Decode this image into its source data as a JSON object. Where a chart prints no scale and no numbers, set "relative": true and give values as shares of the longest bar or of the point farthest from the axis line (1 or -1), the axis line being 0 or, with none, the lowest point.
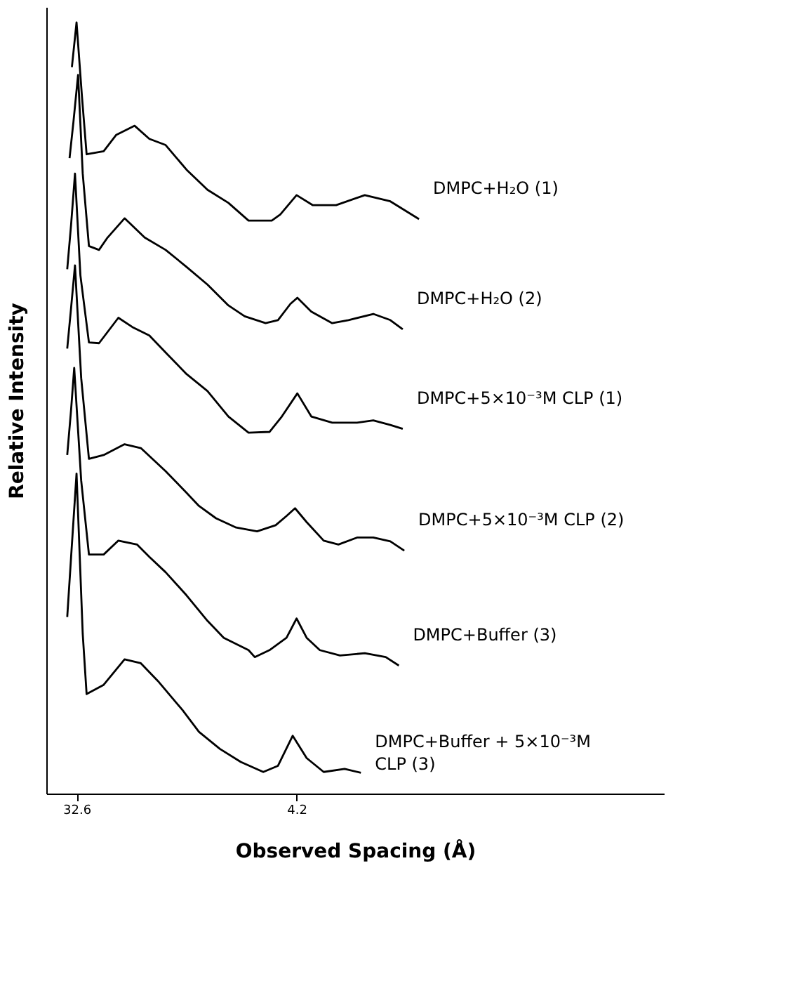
{
  "chart_data": {
    "type": "line",
    "relative": true,
    "xlabel": "Observed Spacing (Å)",
    "ylabel": "Relative Intensity",
    "tick_labels": "x",
    "xlim": [
      36.5,
      -43.2
    ],
    "xticks": [
      32.6,
      4.2
    ],
    "series": [
      {
        "name": "DMPC+H₂O (1)",
        "color": "#000000",
        "x": [
          33.2,
          32.6,
          31.9,
          31.3,
          29.1,
          27.5,
          25.1,
          23.2,
          21.1,
          18.4,
          15.7,
          13.0,
          10.4,
          7.4,
          6.3,
          4.2,
          2.1,
          -0.9,
          -4.6,
          -7.9,
          -11.6
        ],
        "values": [
          0.942,
          1.0,
          0.904,
          0.829,
          0.833,
          0.854,
          0.866,
          0.849,
          0.841,
          0.809,
          0.783,
          0.766,
          0.743,
          0.743,
          0.751,
          0.776,
          0.763,
          0.763,
          0.776,
          0.768,
          0.745
        ]
      },
      {
        "name": "DMPC+H₂O (2)",
        "color": "#000000",
        "x": [
          33.5,
          33.0,
          32.4,
          31.8,
          31.0,
          29.7,
          28.6,
          26.4,
          23.8,
          21.1,
          18.4,
          15.7,
          13.0,
          10.9,
          8.2,
          6.6,
          5.0,
          4.1,
          2.3,
          -0.4,
          -2.5,
          -5.7,
          -7.9,
          -9.5
        ],
        "values": [
          0.824,
          0.871,
          0.932,
          0.804,
          0.71,
          0.705,
          0.721,
          0.746,
          0.721,
          0.705,
          0.683,
          0.66,
          0.633,
          0.619,
          0.61,
          0.614,
          0.635,
          0.643,
          0.625,
          0.61,
          0.614,
          0.622,
          0.614,
          0.602
        ]
      },
      {
        "name": "DMPC+5×10⁻³M CLP (1)",
        "color": "#000000",
        "x": [
          33.8,
          33.3,
          32.8,
          32.1,
          31.0,
          29.7,
          27.2,
          25.4,
          23.2,
          21.1,
          18.4,
          15.7,
          13.0,
          10.4,
          7.7,
          6.1,
          4.1,
          2.3,
          -0.4,
          -3.6,
          -5.7,
          -7.9,
          -9.5
        ],
        "values": [
          0.68,
          0.738,
          0.804,
          0.672,
          0.585,
          0.584,
          0.617,
          0.605,
          0.594,
          0.572,
          0.544,
          0.522,
          0.489,
          0.468,
          0.469,
          0.489,
          0.519,
          0.489,
          0.481,
          0.481,
          0.484,
          0.478,
          0.473
        ]
      },
      {
        "name": "DMPC+5×10⁻³M CLP (2)",
        "color": "#000000",
        "x": [
          33.8,
          33.3,
          32.8,
          32.0,
          31.0,
          29.1,
          26.4,
          24.3,
          21.1,
          18.4,
          16.8,
          14.6,
          12.0,
          9.3,
          6.9,
          5.5,
          4.4,
          2.9,
          0.7,
          -1.2,
          -3.6,
          -5.7,
          -7.9,
          -9.7
        ],
        "values": [
          0.577,
          0.63,
          0.685,
          0.539,
          0.434,
          0.439,
          0.453,
          0.448,
          0.418,
          0.39,
          0.373,
          0.357,
          0.345,
          0.34,
          0.348,
          0.36,
          0.37,
          0.352,
          0.328,
          0.323,
          0.332,
          0.332,
          0.327,
          0.315
        ]
      },
      {
        "name": "DMPC+Buffer (3)",
        "color": "#000000",
        "x": [
          33.8,
          33.3,
          32.9,
          32.0,
          31.0,
          29.1,
          27.2,
          24.8,
          23.2,
          21.1,
          18.4,
          15.7,
          13.6,
          10.4,
          9.6,
          7.7,
          5.5,
          4.2,
          2.9,
          1.2,
          -1.4,
          -4.6,
          -7.3,
          -9.0
        ],
        "values": [
          0.439,
          0.498,
          0.552,
          0.406,
          0.31,
          0.31,
          0.328,
          0.323,
          0.307,
          0.287,
          0.257,
          0.224,
          0.202,
          0.186,
          0.177,
          0.186,
          0.202,
          0.227,
          0.202,
          0.186,
          0.179,
          0.182,
          0.177,
          0.166
        ]
      },
      {
        "name": "DMPC+Buffer + 5×10⁻³M CLP (3)",
        "color": "#000000",
        "x": [
          33.8,
          33.3,
          32.6,
          31.8,
          31.3,
          29.1,
          26.4,
          24.3,
          22.1,
          18.9,
          16.8,
          14.1,
          11.4,
          8.5,
          6.6,
          4.7,
          2.9,
          0.7,
          -2.0,
          -4.1
        ],
        "values": [
          0.229,
          0.307,
          0.415,
          0.207,
          0.129,
          0.141,
          0.174,
          0.169,
          0.146,
          0.108,
          0.08,
          0.058,
          0.041,
          0.028,
          0.036,
          0.075,
          0.046,
          0.028,
          0.032,
          0.027
        ]
      }
    ]
  }
}
